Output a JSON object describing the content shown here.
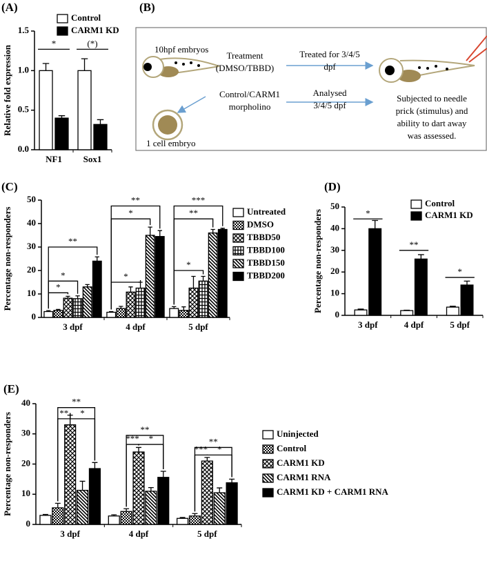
{
  "chart_data": [
    {
      "type": "bar",
      "label": "(A)",
      "y_label": "Relative fold expression",
      "categories": [
        "NF1",
        "Sox1"
      ],
      "series": [
        {
          "name": "Control",
          "color": "#ffffff",
          "values": [
            1.0,
            1.0
          ],
          "errors": [
            0.09,
            0.15
          ]
        },
        {
          "name": "CARM1 KD",
          "color": "#000000",
          "values": [
            0.4,
            0.32
          ],
          "errors": [
            0.03,
            0.06
          ]
        }
      ],
      "ylim": [
        0,
        1.5
      ],
      "yticks": [
        {
          "value": 0,
          "label": "0.0"
        },
        0.5,
        {
          "value": 1,
          "label": "1.0"
        },
        1.5
      ],
      "annotations": [
        "*",
        "(*)"
      ]
    },
    {
      "type": "bar",
      "label": "(C)",
      "y_label": "Percentage non-responders",
      "categories": [
        "3 dpf",
        "4 dpf",
        "5 dpf"
      ],
      "series": [
        {
          "name": "Untreated",
          "color": "#ffffff",
          "values": [
            2.5,
            2.2,
            3.8
          ],
          "errors": [
            0.4,
            0.3,
            0.8
          ]
        },
        {
          "name": "DMSO",
          "color": "#000000",
          "pattern": "checker",
          "values": [
            3,
            3.8,
            3
          ],
          "errors": [
            0.4,
            0.9,
            1.5
          ]
        },
        {
          "name": "TBBD50",
          "color": "#000000",
          "pattern": "diamond",
          "values": [
            8.2,
            10.8,
            12.5
          ],
          "errors": [
            0.8,
            2.2,
            5
          ]
        },
        {
          "name": "TBBD100",
          "color": "#000000",
          "pattern": "grid",
          "values": [
            8,
            12.5,
            15.5
          ],
          "errors": [
            1.2,
            2.5,
            2
          ]
        },
        {
          "name": "TBBD150",
          "color": "#000000",
          "pattern": "diag",
          "values": [
            13,
            35,
            36
          ],
          "errors": [
            1,
            3.5,
            1.5
          ]
        },
        {
          "name": "TBBD200",
          "color": "#000000",
          "values": [
            24,
            34.5,
            37.5
          ],
          "errors": [
            1.8,
            2.5,
            0.5
          ]
        }
      ],
      "ylim": [
        0,
        50
      ],
      "yticks": [
        0,
        10,
        20,
        30,
        40,
        50
      ],
      "annotations": [
        "*",
        "*",
        "**",
        "*",
        "*",
        "**",
        "*",
        "**",
        "***"
      ]
    },
    {
      "type": "bar",
      "label": "(D)",
      "y_label": "Percentage non-responders",
      "categories": [
        "3 dpf",
        "4 dpf",
        "5 dpf"
      ],
      "series": [
        {
          "name": "Control",
          "color": "#ffffff",
          "values": [
            2.5,
            2.2,
            3.8
          ],
          "errors": [
            0.4,
            0.2,
            0.4
          ]
        },
        {
          "name": "CARM1 KD",
          "color": "#000000",
          "values": [
            40,
            26,
            14
          ],
          "errors": [
            3.8,
            2,
            1.8
          ]
        }
      ],
      "ylim": [
        0,
        50
      ],
      "yticks": [
        0,
        10,
        20,
        30,
        40,
        50
      ],
      "annotations": [
        "*",
        "**",
        "*"
      ]
    },
    {
      "type": "bar",
      "label": "(E)",
      "y_label": "Percentage non-responders",
      "categories": [
        "3 dpf",
        "4 dpf",
        "5 dpf"
      ],
      "series": [
        {
          "name": "Uninjected",
          "color": "#ffffff",
          "values": [
            3,
            2.8,
            2
          ],
          "errors": [
            0.3,
            0.4,
            0.3
          ]
        },
        {
          "name": "Control",
          "color": "#000000",
          "pattern": "checker",
          "values": [
            5.5,
            4.3,
            2.8
          ],
          "errors": [
            1.5,
            0.9,
            0.8
          ]
        },
        {
          "name": "CARM1 KD",
          "color": "#000000",
          "pattern": "diamond",
          "values": [
            33,
            24,
            21
          ],
          "errors": [
            3.2,
            1.5,
            1.2
          ]
        },
        {
          "name": "CARM1 RNA",
          "color": "#000000",
          "pattern": "diag",
          "values": [
            11.3,
            11,
            10.5
          ],
          "errors": [
            3,
            1.2,
            1.6
          ]
        },
        {
          "name": "CARM1 KD + CARM1 RNA",
          "color": "#000000",
          "values": [
            18.5,
            15.6,
            13.8
          ],
          "errors": [
            2,
            2,
            1.2
          ]
        }
      ],
      "ylim": [
        0,
        40
      ],
      "yticks": [
        0,
        10,
        20,
        30,
        40
      ],
      "annotations": [
        "**",
        "**",
        "*",
        "**",
        "***",
        "*",
        "**",
        "***",
        "*"
      ]
    }
  ],
  "diagram": {
    "label": "(B)",
    "start": "10hpf embryos",
    "treatment": [
      "Treatment",
      "(DMSO/TBBD)"
    ],
    "treated": [
      "Treated for 3/4/5",
      "dpf"
    ],
    "morpholino": [
      "Control/CARM1",
      "morpholino"
    ],
    "analysed": [
      "Analysed",
      "3/4/5 dpf"
    ],
    "outcome": [
      "Subjected to needle",
      "prick (stimulus) and",
      "ability to dart away",
      "was assessed."
    ],
    "cell": "1 cell embryo"
  }
}
